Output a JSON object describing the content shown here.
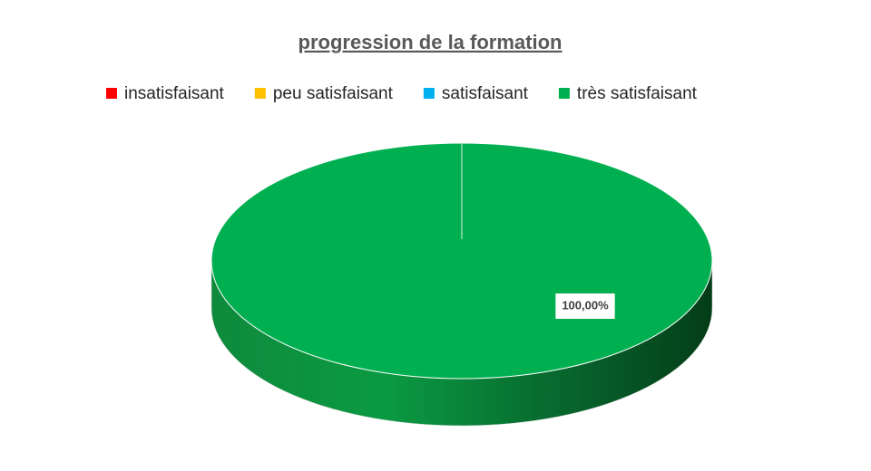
{
  "chart_data": {
    "type": "pie",
    "title": "progression de la formation",
    "categories": [
      "insatisfaisant",
      "peu satisfaisant",
      "satisfaisant",
      "très satisfaisant"
    ],
    "values": [
      0,
      0,
      0,
      100
    ],
    "value_labels": [
      null,
      null,
      null,
      "100,00%"
    ],
    "colors": [
      "#ff0000",
      "#ffc000",
      "#00b0f0",
      "#00b050"
    ],
    "legend": "top"
  }
}
